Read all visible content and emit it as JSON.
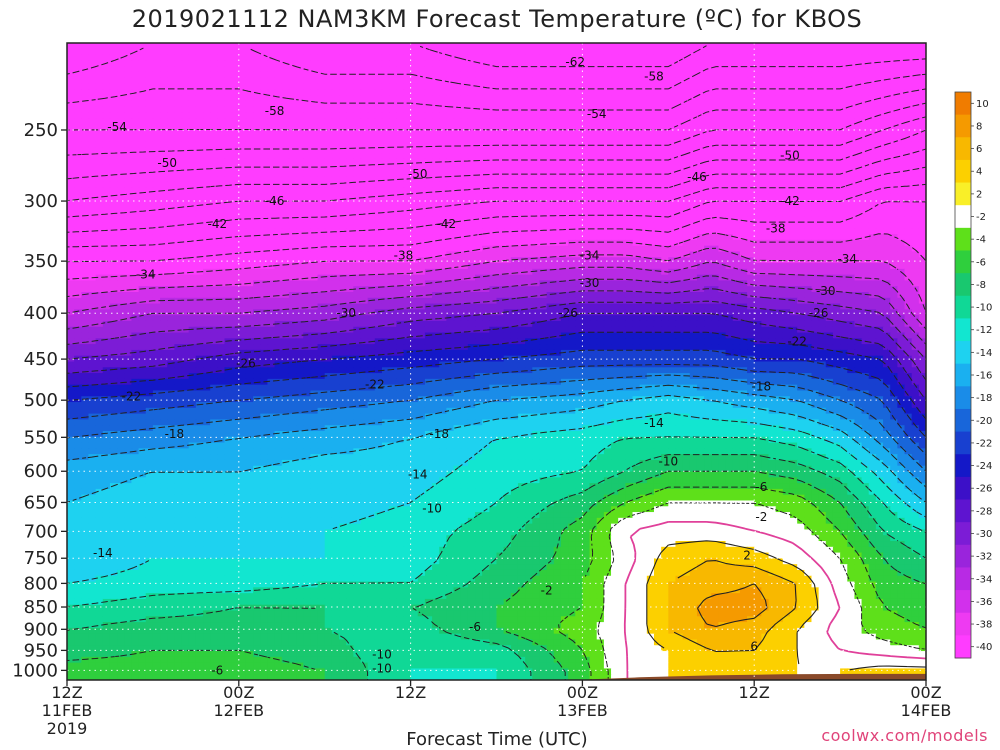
{
  "chart_data": {
    "type": "heatmap",
    "title": "2019021112 NAM3KM Forecast Temperature (ºC) for KBOS",
    "xlabel": "Forecast Time (UTC)",
    "ylabel": "",
    "credit": "coolwx.com/models",
    "y_axis": {
      "unit": "hPa",
      "scale": "log",
      "inverted": true,
      "range": [
        1025,
        200
      ],
      "ticks": [
        250,
        300,
        350,
        400,
        450,
        500,
        550,
        600,
        650,
        700,
        750,
        800,
        850,
        900,
        950,
        1000
      ]
    },
    "x_axis": {
      "unit": "forecast hour",
      "range": [
        0,
        60
      ],
      "ticks": [
        {
          "hour": 0,
          "line1": "12Z",
          "line2": "11FEB",
          "line3": "2019"
        },
        {
          "hour": 12,
          "line1": "00Z",
          "line2": "12FEB",
          "line3": ""
        },
        {
          "hour": 24,
          "line1": "12Z",
          "line2": "",
          "line3": ""
        },
        {
          "hour": 36,
          "line1": "00Z",
          "line2": "13FEB",
          "line3": ""
        },
        {
          "hour": 48,
          "line1": "12Z",
          "line2": "",
          "line3": ""
        },
        {
          "hour": 60,
          "line1": "00Z",
          "line2": "14FEB",
          "line3": ""
        }
      ]
    },
    "grid": "dotted white at each x and y tick",
    "legend_position": "right",
    "colorbar": {
      "levels": [
        10,
        8,
        6,
        4,
        2,
        -2,
        -4,
        -6,
        -8,
        -10,
        -12,
        -14,
        -16,
        -18,
        -20,
        -22,
        -24,
        -26,
        -28,
        -30,
        -32,
        -34,
        -36,
        -38,
        -40
      ],
      "colors": [
        "#f07c00",
        "#f59a00",
        "#f8b800",
        "#fcd000",
        "#f9ef28",
        "#ffffff",
        "#5ee01a",
        "#2fcf3d",
        "#19c86f",
        "#10d896",
        "#12e6d0",
        "#1ed2f0",
        "#1ab0f0",
        "#1a8ce8",
        "#1866da",
        "#1840d0",
        "#1418c8",
        "#3c10c8",
        "#5e14d0",
        "#7c1cd6",
        "#9a24dc",
        "#b82ae4",
        "#d230ec",
        "#ee3af2",
        "#ff3cff"
      ]
    },
    "temperature_field": {
      "hours": [
        0,
        6,
        12,
        18,
        24,
        30,
        36,
        39,
        42,
        45,
        48,
        51,
        54,
        57,
        60
      ],
      "pressures_hpa": [
        200,
        250,
        300,
        350,
        400,
        450,
        500,
        550,
        600,
        650,
        700,
        750,
        800,
        850,
        900,
        950,
        1000
      ],
      "values_c": [
        [
          -60,
          -58,
          -58,
          -60,
          -60,
          -62,
          -62,
          -62,
          -62,
          -60,
          -60,
          -60,
          -60,
          -60,
          -60
        ],
        [
          -54,
          -54,
          -54,
          -54,
          -54,
          -54,
          -54,
          -54,
          -54,
          -52,
          -52,
          -52,
          -52,
          -50,
          -48
        ],
        [
          -48,
          -47,
          -46,
          -46,
          -45,
          -44,
          -44,
          -44,
          -44,
          -42,
          -42,
          -42,
          -42,
          -40,
          -40
        ],
        [
          -40,
          -40,
          -39,
          -38,
          -38,
          -36,
          -35,
          -35,
          -36,
          -34,
          -36,
          -36,
          -36,
          -36,
          -38
        ],
        [
          -34,
          -32,
          -32,
          -31,
          -29,
          -28,
          -26,
          -26,
          -26,
          -26,
          -27,
          -28,
          -29,
          -30,
          -36
        ],
        [
          -28,
          -27,
          -25,
          -24,
          -23,
          -22,
          -21,
          -21,
          -21,
          -21,
          -22,
          -22,
          -23,
          -24,
          -30
        ],
        [
          -22,
          -21,
          -20,
          -19,
          -18,
          -16,
          -15,
          -14,
          -13,
          -14,
          -15,
          -16,
          -18,
          -20,
          -26
        ],
        [
          -18,
          -17,
          -16,
          -15,
          -14,
          -12,
          -11,
          -10,
          -10,
          -10,
          -10,
          -11,
          -13,
          -17,
          -22
        ],
        [
          -15,
          -14,
          -14,
          -13,
          -13,
          -11,
          -10,
          -8,
          -6,
          -6,
          -6,
          -7,
          -9,
          -13,
          -18
        ],
        [
          -14,
          -13,
          -13,
          -13,
          -12,
          -10,
          -7,
          -4,
          -2,
          -2,
          -2,
          -3,
          -6,
          -10,
          -14
        ],
        [
          -13,
          -12,
          -12,
          -12,
          -11,
          -9,
          -5,
          0,
          1,
          1,
          0,
          -1,
          -4,
          -8,
          -10
        ],
        [
          -14,
          -12,
          -12,
          -12,
          -11,
          -8,
          -5,
          -1,
          3,
          4,
          3,
          1,
          -2,
          -6,
          -8
        ],
        [
          -12,
          -11,
          -11,
          -10,
          -10,
          -7,
          -4,
          0,
          4,
          5,
          6,
          4,
          -1,
          -5,
          -6
        ],
        [
          -10,
          -9,
          -8,
          -8,
          -8,
          -6,
          -4,
          0,
          4,
          7,
          7,
          4,
          0,
          -4,
          -5
        ],
        [
          -8,
          -7,
          -7,
          -8,
          -9,
          -6,
          -3,
          0,
          4,
          6,
          5,
          2,
          -1,
          -3,
          -4
        ],
        [
          -7,
          -6,
          -6,
          -7,
          -10,
          -9,
          -4,
          0,
          2,
          4,
          4,
          2,
          0,
          -1,
          -2
        ],
        [
          -5,
          -5,
          -5,
          -6,
          -10,
          -10,
          -5,
          0,
          2,
          3,
          3,
          2,
          2,
          3,
          3
        ]
      ]
    },
    "labeled_isotherms": [
      {
        "text": "-62",
        "hour": 35.5,
        "p": 210
      },
      {
        "text": "-58",
        "hour": 41,
        "p": 218
      },
      {
        "text": "-58",
        "hour": 14.5,
        "p": 238
      },
      {
        "text": "-54",
        "hour": 3.5,
        "p": 248
      },
      {
        "text": "-54",
        "hour": 37,
        "p": 240
      },
      {
        "text": "-50",
        "hour": 7,
        "p": 272
      },
      {
        "text": "-50",
        "hour": 24.5,
        "p": 280
      },
      {
        "text": "-50",
        "hour": 50.5,
        "p": 267
      },
      {
        "text": "-46",
        "hour": 14.5,
        "p": 300
      },
      {
        "text": "-46",
        "hour": 44,
        "p": 282
      },
      {
        "text": "-42",
        "hour": 10.5,
        "p": 318
      },
      {
        "text": "-42",
        "hour": 26.5,
        "p": 318
      },
      {
        "text": "-42",
        "hour": 50.5,
        "p": 300
      },
      {
        "text": "-38",
        "hour": 23.5,
        "p": 345
      },
      {
        "text": "-38",
        "hour": 49.5,
        "p": 322
      },
      {
        "text": "-34",
        "hour": 5.5,
        "p": 362
      },
      {
        "text": "-34",
        "hour": 36.5,
        "p": 345
      },
      {
        "text": "-34",
        "hour": 54.5,
        "p": 348
      },
      {
        "text": "-30",
        "hour": 19.5,
        "p": 400
      },
      {
        "text": "-30",
        "hour": 36.5,
        "p": 370
      },
      {
        "text": "-30",
        "hour": 53,
        "p": 378
      },
      {
        "text": "-26",
        "hour": 12.5,
        "p": 455
      },
      {
        "text": "-26",
        "hour": 35,
        "p": 400
      },
      {
        "text": "-26",
        "hour": 52.5,
        "p": 400
      },
      {
        "text": "-22",
        "hour": 4.5,
        "p": 495
      },
      {
        "text": "-22",
        "hour": 21.5,
        "p": 480
      },
      {
        "text": "-22",
        "hour": 51,
        "p": 430
      },
      {
        "text": "-18",
        "hour": 7.5,
        "p": 545
      },
      {
        "text": "-18",
        "hour": 26,
        "p": 545
      },
      {
        "text": "-18",
        "hour": 48.5,
        "p": 483
      },
      {
        "text": "-14",
        "hour": 24.5,
        "p": 605
      },
      {
        "text": "-14",
        "hour": 41,
        "p": 530
      },
      {
        "text": "-14",
        "hour": 2.5,
        "p": 740
      },
      {
        "text": "-10",
        "hour": 25.5,
        "p": 660
      },
      {
        "text": "-10",
        "hour": 42,
        "p": 585
      },
      {
        "text": "-10",
        "hour": 22,
        "p": 960
      },
      {
        "text": "-10",
        "hour": 22,
        "p": 995
      },
      {
        "text": "-6",
        "hour": 48.5,
        "p": 625
      },
      {
        "text": "-6",
        "hour": 28.5,
        "p": 895
      },
      {
        "text": "-6",
        "hour": 10.5,
        "p": 1000
      },
      {
        "text": "-2",
        "hour": 48.5,
        "p": 675
      },
      {
        "text": "-2",
        "hour": 33.5,
        "p": 815
      },
      {
        "text": "2",
        "hour": 47.5,
        "p": 745
      },
      {
        "text": "6",
        "hour": 48,
        "p": 940
      }
    ],
    "terrain": {
      "color": "#8a4a2a",
      "surface_pressure_hpa": [
        {
          "hour": 0,
          "p": 1025
        },
        {
          "hour": 34,
          "p": 1025
        },
        {
          "hour": 36,
          "p": 1024
        },
        {
          "hour": 40,
          "p": 1018
        },
        {
          "hour": 45,
          "p": 1013
        },
        {
          "hour": 50,
          "p": 1010
        },
        {
          "hour": 55,
          "p": 1009
        },
        {
          "hour": 60,
          "p": 1009
        }
      ]
    }
  }
}
